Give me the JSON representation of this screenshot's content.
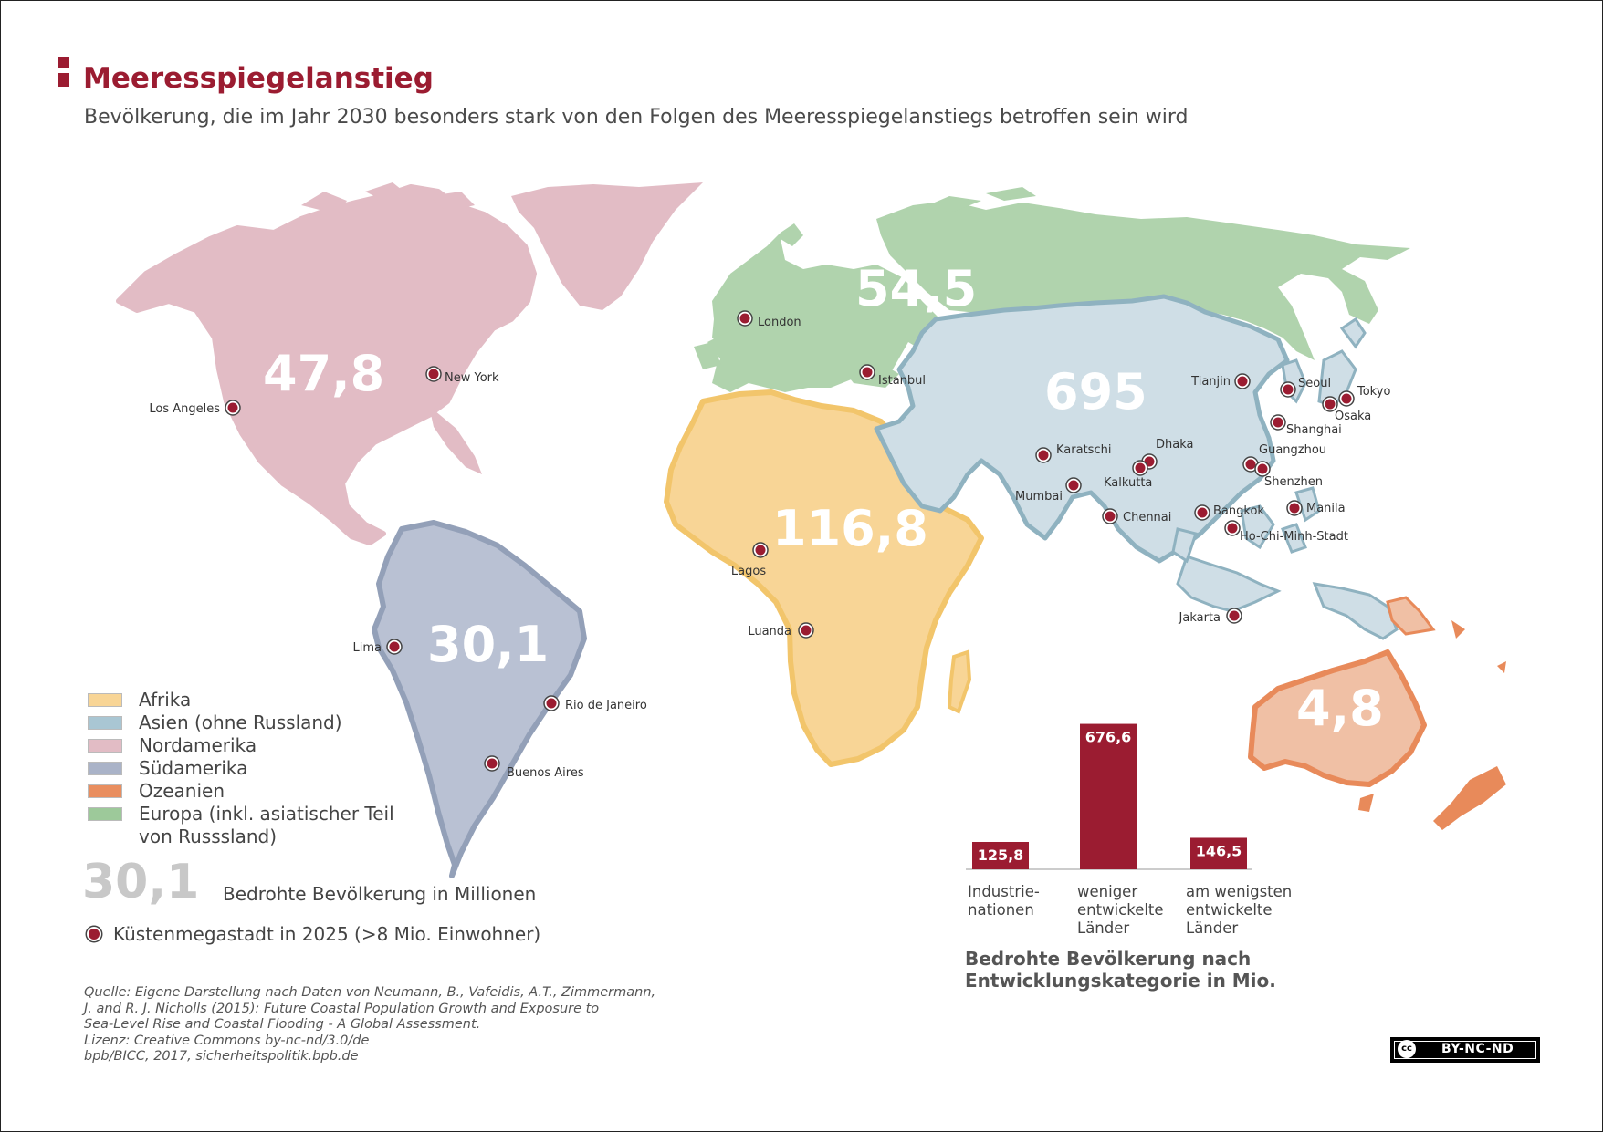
{
  "header": {
    "title": "Meeresspiegelanstieg",
    "subtitle": "Bevölkerung, die im Jahr 2030 besonders stark von den Folgen des Meeresspiegelanstiegs betroffen sein wird"
  },
  "colors": {
    "accent": "#9b1c31",
    "afrika": "#f8d596",
    "afrika_border": "#f2c56b",
    "asien": "#cfdee6",
    "asien_border": "#8fb2c0",
    "nordamerika": "#e2bcc5",
    "suedamerika": "#b9c1d3",
    "suedamerika_border": "#93a0b8",
    "ozeanien": "#f0c0a5",
    "ozeanien_border": "#e88a5a",
    "europa": "#b0d3ad"
  },
  "regions": {
    "nordamerika": "47,8",
    "europa": "54,5",
    "asien": "695",
    "afrika": "116,8",
    "suedamerika": "30,1",
    "ozeanien": "4,8"
  },
  "cities": [
    "London",
    "Istanbul",
    "New York",
    "Los Angeles",
    "Lima",
    "Rio de Janeiro",
    "Buenos Aires",
    "Lagos",
    "Luanda",
    "Karatschi",
    "Mumbai",
    "Dhaka",
    "Kalkutta",
    "Chennai",
    "Bangkok",
    "Ho-Chi-Minh-Stadt",
    "Jakarta",
    "Manila",
    "Guangzhou",
    "Shenzhen",
    "Shanghai",
    "Tianjin",
    "Seoul",
    "Osaka",
    "Tokyo"
  ],
  "legend": {
    "items": [
      {
        "label": "Afrika",
        "color": "#f8d596"
      },
      {
        "label": "Asien (ohne Russland)",
        "color": "#a9c6d3"
      },
      {
        "label": "Nordamerika",
        "color": "#e2bcc5"
      },
      {
        "label": "Südamerika",
        "color": "#aab3c8"
      },
      {
        "label": "Ozeanien",
        "color": "#e98e5f"
      },
      {
        "label": "Europa (inkl. asiatischer Teil",
        "label2": "von Russsland)",
        "color": "#9dc99a"
      }
    ],
    "big_number": "30,1",
    "big_number_label": "Bedrohte Bevölkerung in Millionen",
    "megacity_label": "Küstenmegastadt in 2025 (>8 Mio. Einwohner)"
  },
  "source": {
    "line1": "Quelle: Eigene Darstellung nach Daten von Neumann, B., Vafeidis, A.T., Zimmermann,",
    "line2": "J. and R. J. Nicholls (2015): Future Coastal Population Growth and Exposure to",
    "line3": "Sea-Level Rise and Coastal Flooding - A Global Assessment.",
    "line4": "Lizenz: Creative Commons by-nc-nd/3.0/de",
    "line5": "bpb/BICC, 2017, sicherheitspolitik.bpb.de"
  },
  "chart_data": {
    "type": "bar",
    "title": "Bedrohte Bevölkerung nach\nEntwicklungskategorie in Mio.",
    "categories": [
      "Industrie-\nnationen",
      "weniger\nentwickelte\nLänder",
      "am wenigsten\nentwickelte\nLänder"
    ],
    "values": [
      125.8,
      676.6,
      146.5
    ],
    "value_labels": [
      "125,8",
      "676,6",
      "146,5"
    ],
    "ylim": [
      0,
      700
    ],
    "color": "#9b1c31",
    "grid": false
  },
  "license": {
    "cc_mark": "cc",
    "text": "BY-NC-ND"
  }
}
